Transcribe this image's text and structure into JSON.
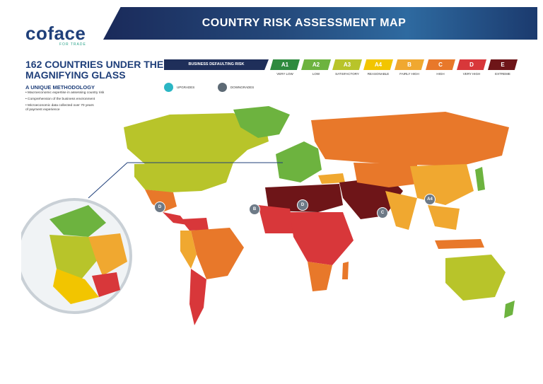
{
  "header": {
    "logo": "coface",
    "logo_sub": "FOR TRADE",
    "title": "COUNTRY RISK ASSESSMENT MAP"
  },
  "intro": {
    "headline": "162 COUNTRIES UNDER THE MAGNIFYING GLASS",
    "subhead": "A UNIQUE METHODOLOGY",
    "bullets": [
      "• Macroeconomic expertise in assessing country risk",
      "• Comprehension of the business environment",
      "• Microeconomic data collected over 70 years of payment experience"
    ]
  },
  "legend": {
    "title": "BUSINESS DEFAULTING RISK",
    "grades": [
      {
        "code": "A1",
        "label": "VERY LOW",
        "color": "#2e8a3e"
      },
      {
        "code": "A2",
        "label": "LOW",
        "color": "#6db33f"
      },
      {
        "code": "A3",
        "label": "SATISFACTORY",
        "color": "#b8c42a"
      },
      {
        "code": "A4",
        "label": "REASONABLE",
        "color": "#f2c500"
      },
      {
        "code": "B",
        "label": "FAIRLY HIGH",
        "color": "#f0a830"
      },
      {
        "code": "C",
        "label": "HIGH",
        "color": "#e8782a"
      },
      {
        "code": "D",
        "label": "VERY HIGH",
        "color": "#d8373a"
      },
      {
        "code": "E",
        "label": "EXTREME",
        "color": "#6e1518"
      }
    ],
    "upgrades": {
      "label": "UPGRADES",
      "color": "#2bb6c4"
    },
    "downgrades": {
      "label": "DOWNGRADES",
      "color": "#5d6a75"
    }
  },
  "map": {
    "ocean": "#ffffff",
    "markers": [
      {
        "code": "D"
      },
      {
        "code": "B"
      },
      {
        "code": "D"
      },
      {
        "code": "C"
      },
      {
        "code": "A4"
      }
    ]
  }
}
